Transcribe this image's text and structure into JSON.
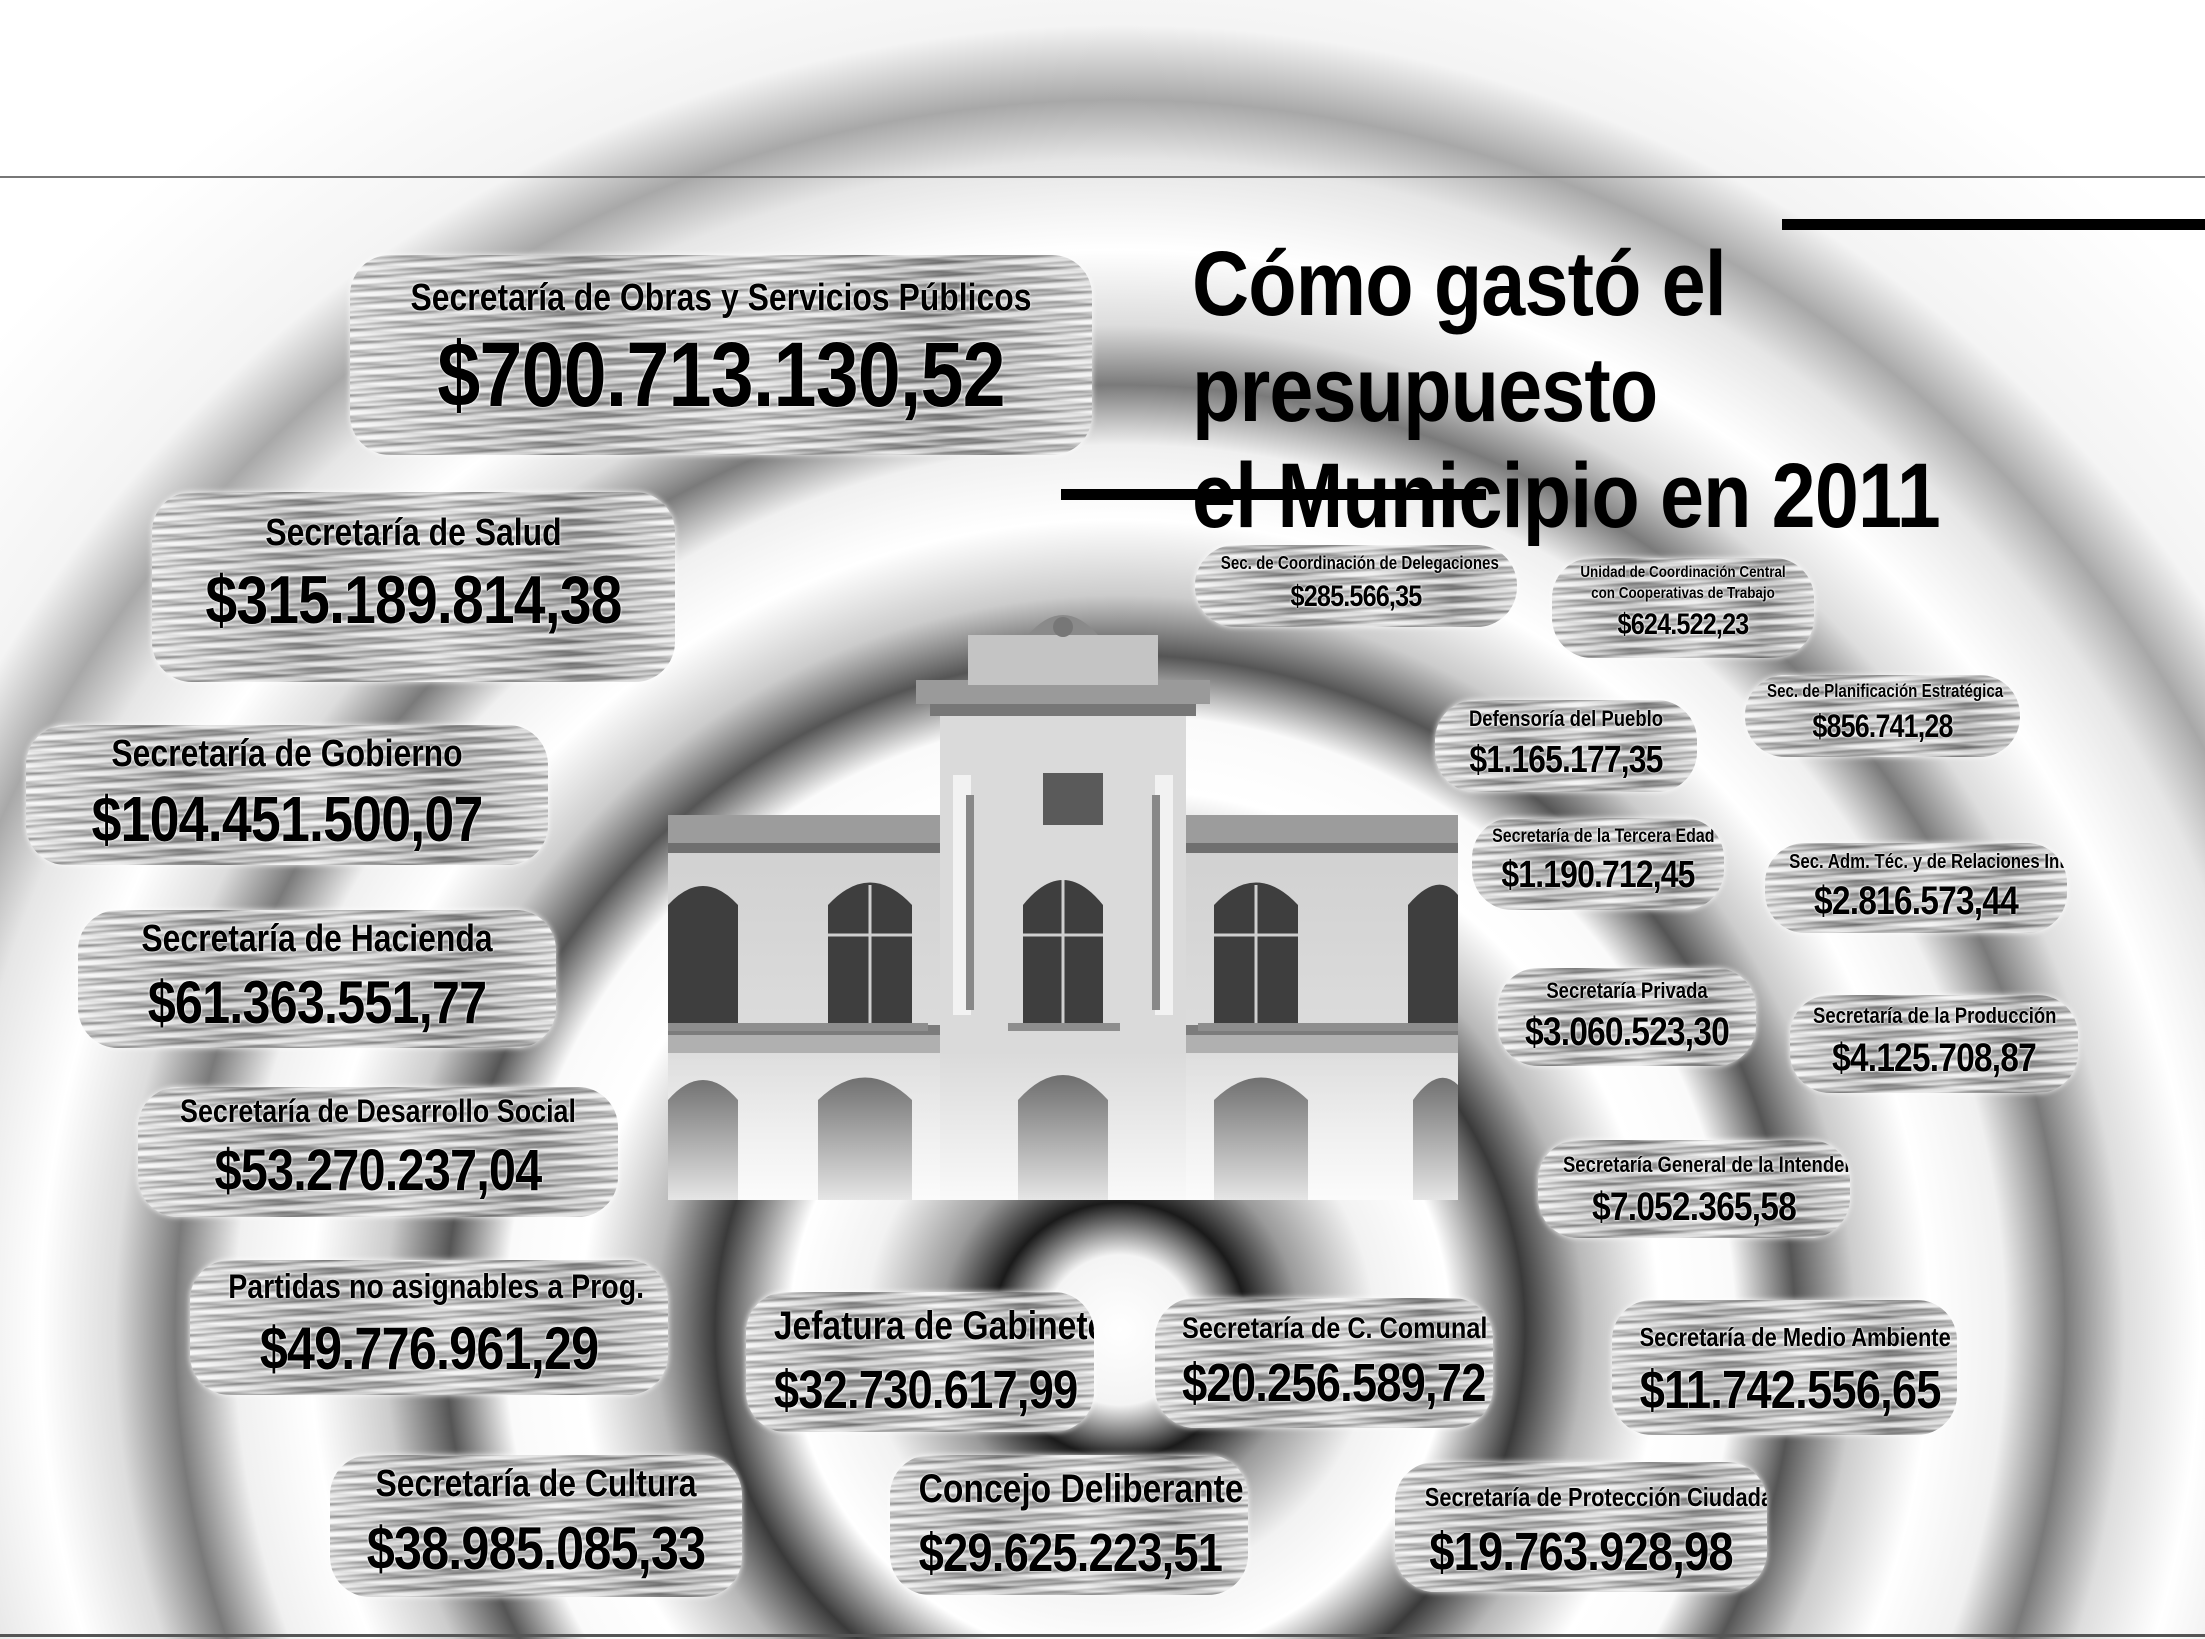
{
  "title": {
    "line1": "Cómo gastó el presupuesto",
    "line2": "el Municipio en 2011"
  },
  "items": [
    {
      "label": "Secretaría de Obras y Servicios Públicos",
      "amount": "$700.713.130,52"
    },
    {
      "label": "Secretaría de Salud",
      "amount": "$315.189.814,38"
    },
    {
      "label": "Secretaría de Gobierno",
      "amount": "$104.451.500,07"
    },
    {
      "label": "Secretaría de Hacienda",
      "amount": "$61.363.551,77"
    },
    {
      "label": "Secretaría de Desarrollo Social",
      "amount": "$53.270.237,04"
    },
    {
      "label": "Partidas no asignables a Prog.",
      "amount": "$49.776.961,29"
    },
    {
      "label": "Secretaría de Cultura",
      "amount": "$38.985.085,33"
    },
    {
      "label": "Jefatura de Gabinete",
      "amount": "$32.730.617,99"
    },
    {
      "label": "Concejo Deliberante",
      "amount": "$29.625.223,51"
    },
    {
      "label": "Secretaría de C. Comunal",
      "amount": "$20.256.589,72"
    },
    {
      "label": "Secretaría de Protección Ciudadana",
      "amount": "$19.763.928,98"
    },
    {
      "label": "Secretaría de Medio Ambiente",
      "amount": "$11.742.556,65"
    },
    {
      "label": "Secretaría General de la Intendencia",
      "amount": "$7.052.365,58"
    },
    {
      "label": "Secretaría de la Producción",
      "amount": "$4.125.708,87"
    },
    {
      "label": "Secretaría Privada",
      "amount": "$3.060.523,30"
    },
    {
      "label": "Sec. Adm. Téc. y  de Relaciones Int.",
      "amount": "$2.816.573,44"
    },
    {
      "label": "Secretaría de la Tercera Edad",
      "amount": "$1.190.712,45"
    },
    {
      "label": "Defensoría del Pueblo",
      "amount": "$1.165.177,35"
    },
    {
      "label": "Sec. de Planificación Estratégica",
      "amount": "$856.741,28"
    },
    {
      "label": "Unidad de Coordinación Central",
      "label2": "con Cooperativas de Trabajo",
      "amount": "$624.522,23"
    },
    {
      "label": "Sec. de Coordinación de Delegaciones",
      "amount": "$285.566,35"
    }
  ]
}
